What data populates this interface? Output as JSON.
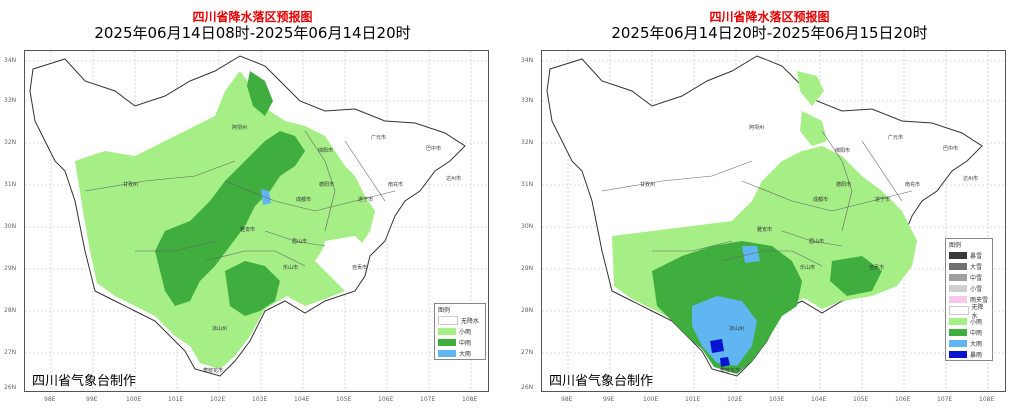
{
  "panels": [
    {
      "title": "四川省降水落区预报图",
      "subtitle": "2025年06月14日08时-2025年06月14日20时",
      "maker": "四川省气象台制作",
      "legend_title": "图例",
      "legend": [
        {
          "label": "无降水",
          "color": "#ffffff"
        },
        {
          "label": "小雨",
          "color": "#a6ee86"
        },
        {
          "label": "中雨",
          "color": "#3fae3f"
        },
        {
          "label": "大雨",
          "color": "#5fb6f0"
        }
      ]
    },
    {
      "title": "四川省降水落区预报图",
      "subtitle": "2025年06月14日20时-2025年06月15日20时",
      "maker": "四川省气象台制作",
      "legend_title": "图例",
      "legend": [
        {
          "label": "暴雪",
          "color": "#3a3a3a"
        },
        {
          "label": "大雪",
          "color": "#707070"
        },
        {
          "label": "中雪",
          "color": "#a0a0a0"
        },
        {
          "label": "小雪",
          "color": "#cfcfcf"
        },
        {
          "label": "雨夹雪",
          "color": "#f7c6ea"
        },
        {
          "label": "无降水",
          "color": "#ffffff"
        },
        {
          "label": "小雨",
          "color": "#a6ee86"
        },
        {
          "label": "中雨",
          "color": "#3fae3f"
        },
        {
          "label": "大雨",
          "color": "#5fb6f0"
        },
        {
          "label": "暴雨",
          "color": "#0a14d0"
        }
      ]
    }
  ],
  "lat_ticks": [
    "34N",
    "33N",
    "32N",
    "31N",
    "30N",
    "29N",
    "28N",
    "27N",
    "26N"
  ],
  "lon_ticks": [
    "98E",
    "99E",
    "100E",
    "101E",
    "102E",
    "103E",
    "104E",
    "105E",
    "106E",
    "107E",
    "108E"
  ],
  "cities": [
    "阿坝州",
    "绵阳市",
    "广元市",
    "巴中市",
    "德阳市",
    "南充市",
    "达州市",
    "甘孜州",
    "成都市",
    "遂宁市",
    "雅安市",
    "眉山市",
    "乐山市",
    "自贡市",
    "凉山州",
    "攀枝花市"
  ]
}
